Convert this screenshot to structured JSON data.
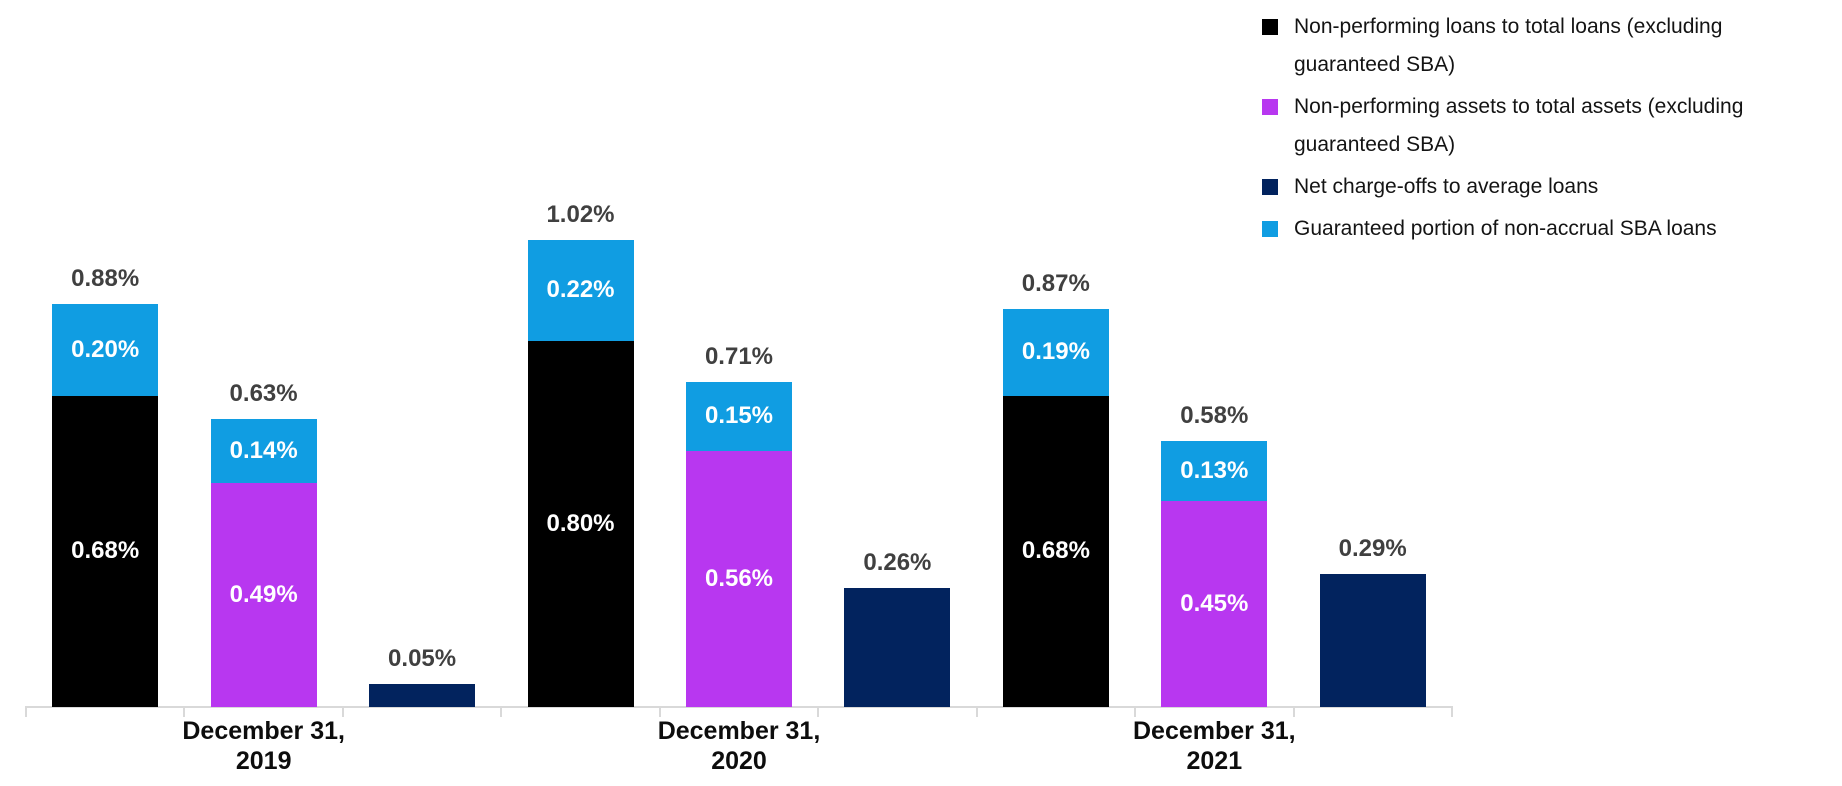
{
  "colors": {
    "background": "#ffffff",
    "axis": "#d9d9d9",
    "total_label": "#404040",
    "inside_label": "#ffffff",
    "category_label": "#0d0d0d"
  },
  "legend": {
    "position": "top-right",
    "items": [
      {
        "series": "npl",
        "label": "Non-performing loans to total loans (excluding guaranteed SBA)",
        "color": "#000000"
      },
      {
        "series": "npa",
        "label": "Non-performing assets to total assets (excluding guaranteed SBA)",
        "color": "#b837f0"
      },
      {
        "series": "nco",
        "label": "Net charge-offs to average loans",
        "color": "#02235e"
      },
      {
        "series": "sba",
        "label": "Guaranteed portion of non-accrual SBA loans",
        "color": "#109de2"
      }
    ]
  },
  "chart_data": {
    "type": "bar",
    "stacked": true,
    "value_unit": "percent",
    "ylim": [
      0,
      1.1
    ],
    "gridlines": false,
    "categories": [
      "December 31,\n2019",
      "December 31,\n2020",
      "December 31,\n2021"
    ],
    "series_info": {
      "npl": {
        "label": "Non-performing loans to total loans (excluding guaranteed SBA)",
        "color": "#000000"
      },
      "npa": {
        "label": "Non-performing assets to total assets (excluding guaranteed SBA)",
        "color": "#b837f0"
      },
      "nco": {
        "label": "Net charge-offs to average loans",
        "color": "#02235e"
      },
      "sba": {
        "label": "Guaranteed portion of non-accrual SBA loans",
        "color": "#109de2"
      }
    },
    "groups": [
      {
        "category": "December 31,\n2019",
        "bars": [
          {
            "total": {
              "value": 0.88,
              "label": "0.88%"
            },
            "segments": [
              {
                "series": "npl",
                "value": 0.68,
                "label": "0.68%"
              },
              {
                "series": "sba",
                "value": 0.2,
                "label": "0.20%"
              }
            ]
          },
          {
            "total": {
              "value": 0.63,
              "label": "0.63%"
            },
            "segments": [
              {
                "series": "npa",
                "value": 0.49,
                "label": "0.49%"
              },
              {
                "series": "sba",
                "value": 0.14,
                "label": "0.14%"
              }
            ]
          },
          {
            "total": {
              "value": 0.05,
              "label": "0.05%"
            },
            "segments": [
              {
                "series": "nco",
                "value": 0.05
              }
            ]
          }
        ]
      },
      {
        "category": "December 31,\n2020",
        "bars": [
          {
            "total": {
              "value": 1.02,
              "label": "1.02%"
            },
            "segments": [
              {
                "series": "npl",
                "value": 0.8,
                "label": "0.80%"
              },
              {
                "series": "sba",
                "value": 0.22,
                "label": "0.22%"
              }
            ]
          },
          {
            "total": {
              "value": 0.71,
              "label": "0.71%"
            },
            "segments": [
              {
                "series": "npa",
                "value": 0.56,
                "label": "0.56%"
              },
              {
                "series": "sba",
                "value": 0.15,
                "label": "0.15%"
              }
            ]
          },
          {
            "total": {
              "value": 0.26,
              "label": "0.26%"
            },
            "segments": [
              {
                "series": "nco",
                "value": 0.26
              }
            ]
          }
        ]
      },
      {
        "category": "December 31,\n2021",
        "bars": [
          {
            "total": {
              "value": 0.87,
              "label": "0.87%"
            },
            "segments": [
              {
                "series": "npl",
                "value": 0.68,
                "label": "0.68%"
              },
              {
                "series": "sba",
                "value": 0.19,
                "label": "0.19%"
              }
            ]
          },
          {
            "total": {
              "value": 0.58,
              "label": "0.58%"
            },
            "segments": [
              {
                "series": "npa",
                "value": 0.45,
                "label": "0.45%"
              },
              {
                "series": "sba",
                "value": 0.13,
                "label": "0.13%"
              }
            ]
          },
          {
            "total": {
              "value": 0.29,
              "label": "0.29%"
            },
            "segments": [
              {
                "series": "nco",
                "value": 0.29
              }
            ]
          }
        ]
      }
    ]
  }
}
